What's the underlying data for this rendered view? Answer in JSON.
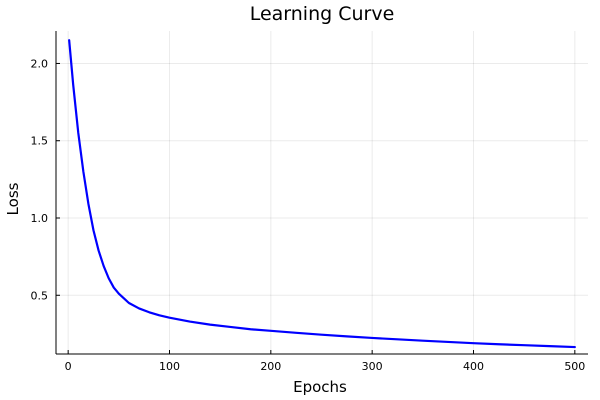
{
  "chart_data": {
    "type": "line",
    "title": "Learning Curve",
    "xlabel": "Epochs",
    "ylabel": "Loss",
    "xlim": [
      -12,
      513
    ],
    "ylim": [
      0.12,
      2.21
    ],
    "xticks": [
      0,
      100,
      200,
      300,
      400,
      500
    ],
    "xtick_labels": [
      "0",
      "100",
      "200",
      "300",
      "400",
      "500"
    ],
    "yticks": [
      0.5,
      1.0,
      1.5,
      2.0
    ],
    "ytick_labels": [
      "0.5",
      "1.0",
      "1.5",
      "2.0"
    ],
    "grid": true,
    "series": [
      {
        "name": "",
        "color": "#0000ff",
        "x": [
          1,
          5,
          10,
          15,
          20,
          25,
          30,
          35,
          40,
          45,
          50,
          60,
          70,
          80,
          90,
          100,
          120,
          140,
          160,
          180,
          200,
          225,
          250,
          275,
          300,
          325,
          350,
          375,
          400,
          425,
          450,
          475,
          500
        ],
        "y": [
          2.15,
          1.86,
          1.55,
          1.3,
          1.09,
          0.92,
          0.79,
          0.69,
          0.61,
          0.55,
          0.51,
          0.45,
          0.415,
          0.39,
          0.37,
          0.355,
          0.33,
          0.31,
          0.295,
          0.28,
          0.27,
          0.257,
          0.245,
          0.234,
          0.224,
          0.215,
          0.206,
          0.198,
          0.19,
          0.183,
          0.177,
          0.171,
          0.165
        ]
      }
    ]
  }
}
